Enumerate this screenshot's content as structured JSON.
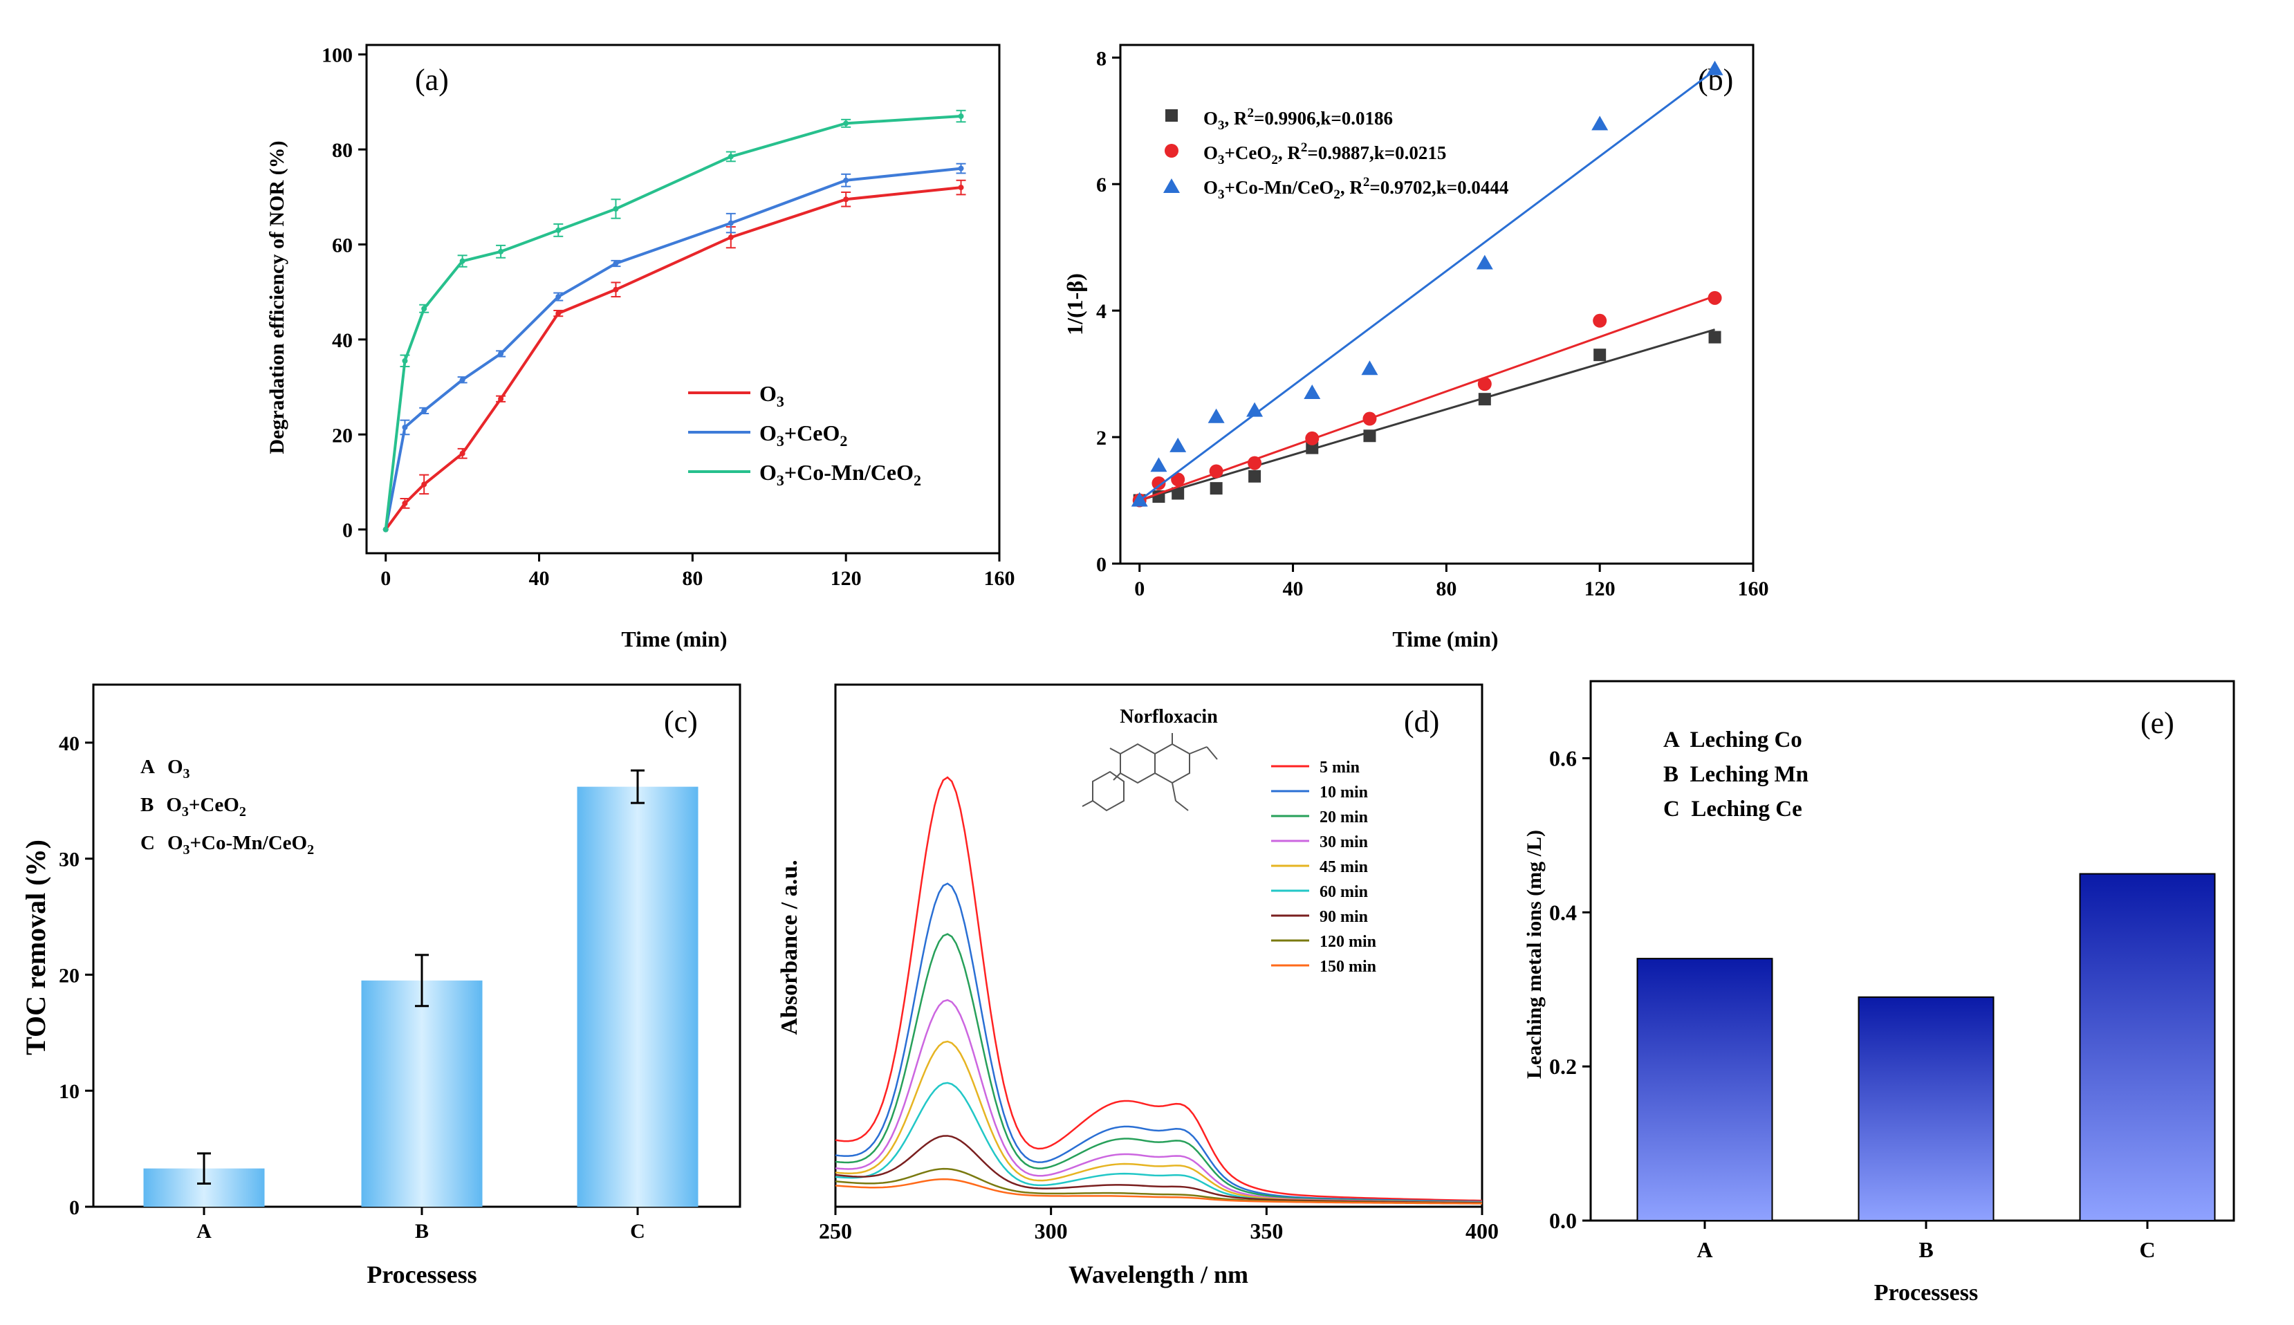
{
  "chart_data": [
    {
      "panel": "(a)",
      "type": "line",
      "xlabel": "Time (min)",
      "ylabel": "Degradation efficiency of NOR (%)",
      "xlim": [
        -5,
        160
      ],
      "ylim": [
        -5,
        102
      ],
      "xticks": [
        "0",
        "40",
        "80",
        "120",
        "160"
      ],
      "yticks": [
        "0",
        "20",
        "40",
        "60",
        "80",
        "100"
      ],
      "x": [
        0,
        5,
        10,
        20,
        30,
        45,
        60,
        90,
        120,
        150
      ],
      "series": [
        {
          "name": "O3",
          "label_main": "O",
          "label_sub": "3",
          "label_rest": "",
          "color": "#e8262a",
          "values": [
            0,
            5.5,
            9.5,
            16,
            27.5,
            45.5,
            50.5,
            61.5,
            69.5,
            72
          ],
          "errors": [
            0,
            1,
            2,
            1,
            0.6,
            0.6,
            1.5,
            2.2,
            1.5,
            1.5
          ]
        },
        {
          "name": "O3+CeO2",
          "label_main": "O",
          "label_sub": "3",
          "label_rest": "+CeO",
          "label_sub2": "2",
          "color": "#3e7bd8",
          "values": [
            0,
            21.5,
            25,
            31.5,
            37,
            49,
            56,
            64.5,
            73.5,
            76
          ],
          "errors": [
            0,
            1.5,
            0.6,
            0.6,
            0.6,
            0.8,
            0.6,
            2,
            1.3,
            1
          ]
        },
        {
          "name": "O3+Co-Mn/CeO2",
          "label_main": "O",
          "label_sub": "3",
          "label_rest": "+Co-Mn/CeO",
          "label_sub2": "2",
          "color": "#27c08d",
          "values": [
            0,
            35.5,
            46.5,
            56.5,
            58.5,
            63,
            67.5,
            78.5,
            85.5,
            87
          ],
          "errors": [
            0,
            1.2,
            0.8,
            1.2,
            1.3,
            1.3,
            2,
            1,
            0.8,
            1.2
          ]
        }
      ]
    },
    {
      "panel": "(b)",
      "type": "scatter",
      "xlabel": "Time (min)",
      "ylabel": "1/(1-β)",
      "xlim": [
        -5,
        160
      ],
      "ylim": [
        0,
        8.2
      ],
      "xticks": [
        "0",
        "40",
        "80",
        "120",
        "160"
      ],
      "yticks": [
        "0",
        "2",
        "4",
        "6",
        "8"
      ],
      "x": [
        0,
        5,
        10,
        20,
        30,
        45,
        60,
        90,
        120,
        150
      ],
      "series": [
        {
          "name": "O3",
          "marker": "square",
          "color": "#3a3a3a",
          "label_main": "O",
          "label_sub": "3",
          "label_rest": ", R",
          "label_sup": "2",
          "label_tail": "=0.9906,k=0.0186",
          "values": [
            1.0,
            1.06,
            1.11,
            1.19,
            1.38,
            1.83,
            2.02,
            2.6,
            3.3,
            3.58
          ],
          "fit": [
            1.0,
            3.7
          ]
        },
        {
          "name": "O3+CeO2",
          "marker": "circle",
          "color": "#e8262a",
          "label_main": "O",
          "label_sub": "3",
          "label_rest": "+CeO",
          "label_sub2": "2",
          "label_rest2": ", R",
          "label_sup": "2",
          "label_tail": "=0.9887,k=0.0215",
          "values": [
            1.0,
            1.27,
            1.33,
            1.46,
            1.59,
            1.98,
            2.29,
            2.84,
            3.84,
            4.2
          ],
          "fit": [
            1.0,
            4.23
          ]
        },
        {
          "name": "O3+Co-Mn/CeO2",
          "marker": "triangle",
          "color": "#2a6fd4",
          "label_main": "O",
          "label_sub": "3",
          "label_rest": "+Co-Mn/CeO",
          "label_sub2": "2",
          "label_rest2": ", R",
          "label_sup": "2",
          "label_tail": "=0.9702,k=0.0444",
          "values": [
            1.0,
            1.55,
            1.86,
            2.32,
            2.42,
            2.7,
            3.08,
            4.75,
            6.95,
            7.82
          ],
          "fit": [
            1.0,
            7.8
          ]
        }
      ]
    },
    {
      "panel": "(c)",
      "type": "bar",
      "xlabel": "Processess",
      "ylabel": "TOC removal  (%)",
      "ylim": [
        0,
        45
      ],
      "yticks": [
        "0",
        "10",
        "20",
        "30",
        "40"
      ],
      "categories": [
        "A",
        "B",
        "C"
      ],
      "values": [
        3.3,
        19.5,
        36.2
      ],
      "errors": [
        1.3,
        2.2,
        1.4
      ],
      "legend": [
        {
          "key": "A",
          "main": "O",
          "sub": "3",
          "rest": "",
          "sub2": ""
        },
        {
          "key": "B",
          "main": "O",
          "sub": "3",
          "rest": "+CeO",
          "sub2": "2"
        },
        {
          "key": "C",
          "main": "O",
          "sub": "3",
          "rest": "+Co-Mn/CeO",
          "sub2": "2"
        }
      ]
    },
    {
      "panel": "(d)",
      "type": "line",
      "xlabel": "Wavelength / nm",
      "ylabel": "Absorbance / a.u.",
      "inset_title": "Norfloxacin",
      "xlim": [
        250,
        400
      ],
      "xticks": [
        "250",
        "300",
        "350",
        "400"
      ],
      "series": [
        {
          "name": "5 min",
          "color": "#ff2222",
          "peak": 1.0,
          "base": 0.3
        },
        {
          "name": "10 min",
          "color": "#2a6fd4",
          "peak": 0.75,
          "base": 0.23
        },
        {
          "name": "20 min",
          "color": "#27a05a",
          "peak": 0.63,
          "base": 0.2
        },
        {
          "name": "30 min",
          "color": "#cc66e0",
          "peak": 0.47,
          "base": 0.17
        },
        {
          "name": "45 min",
          "color": "#e6b422",
          "peak": 0.37,
          "base": 0.15
        },
        {
          "name": "60 min",
          "color": "#22c7c7",
          "peak": 0.27,
          "base": 0.13
        },
        {
          "name": "90 min",
          "color": "#7a1f1f",
          "peak": 0.13,
          "base": 0.14
        },
        {
          "name": "120 min",
          "color": "#7a7a10",
          "peak": 0.055,
          "base": 0.11
        },
        {
          "name": "150 min",
          "color": "#ff6a1a",
          "peak": 0.035,
          "base": 0.09
        }
      ]
    },
    {
      "panel": "(e)",
      "type": "bar",
      "xlabel": "Processess",
      "ylabel": "Leaching metal ions (mg /L)",
      "ylim": [
        0,
        0.7
      ],
      "yticks": [
        "0.0",
        "0.2",
        "0.4",
        "0.6"
      ],
      "categories": [
        "A",
        "B",
        "C"
      ],
      "values": [
        0.34,
        0.29,
        0.45
      ],
      "legend": [
        "A  Leching Co",
        "B  Leching Mn",
        "C  Leching Ce"
      ]
    }
  ]
}
